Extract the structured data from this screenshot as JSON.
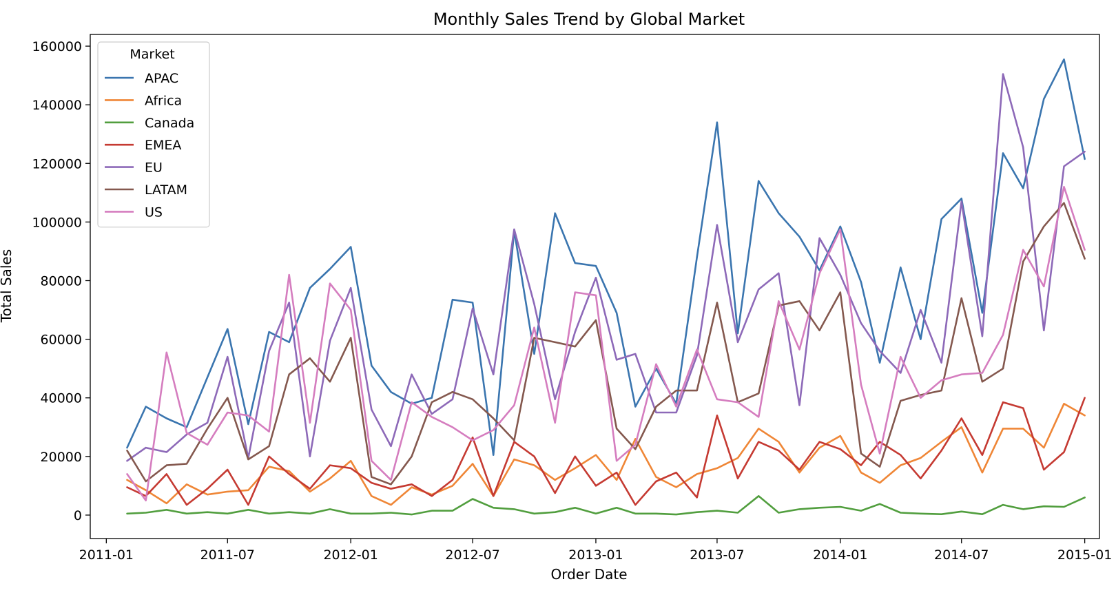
{
  "chart_data": {
    "type": "line",
    "title": "Monthly Sales Trend by Global Market",
    "xlabel": "Order Date",
    "ylabel": "Total Sales",
    "x": [
      "2011-01",
      "2011-02",
      "2011-03",
      "2011-04",
      "2011-05",
      "2011-06",
      "2011-07",
      "2011-08",
      "2011-09",
      "2011-10",
      "2011-11",
      "2011-12",
      "2012-01",
      "2012-02",
      "2012-03",
      "2012-04",
      "2012-05",
      "2012-06",
      "2012-07",
      "2012-08",
      "2012-09",
      "2012-10",
      "2012-11",
      "2012-12",
      "2013-01",
      "2013-02",
      "2013-03",
      "2013-04",
      "2013-05",
      "2013-06",
      "2013-07",
      "2013-08",
      "2013-09",
      "2013-10",
      "2013-11",
      "2013-12",
      "2014-01",
      "2014-02",
      "2014-03",
      "2014-04",
      "2014-05",
      "2014-06",
      "2014-07",
      "2014-08",
      "2014-09",
      "2014-10",
      "2014-11",
      "2014-12"
    ],
    "xticks": [
      "2011-01",
      "2011-07",
      "2012-01",
      "2012-07",
      "2013-01",
      "2013-07",
      "2014-01",
      "2014-07",
      "2015-01"
    ],
    "xlim": [
      "2010-12-08",
      "2015-01-23"
    ],
    "ylim": [
      -8000,
      164000
    ],
    "yticks": [
      0,
      20000,
      40000,
      60000,
      80000,
      100000,
      120000,
      140000,
      160000
    ],
    "grid": false,
    "legend": {
      "title": "Market",
      "placement": "top-left"
    },
    "series": [
      {
        "name": "APAC",
        "color": "#3a75af",
        "values": [
          23000,
          37000,
          33000,
          30000,
          47000,
          63500,
          31000,
          62500,
          59000,
          77500,
          84000,
          91500,
          51000,
          42000,
          38000,
          40000,
          73500,
          72500,
          20500,
          97000,
          55000,
          103000,
          86000,
          85000,
          69000,
          37000,
          50000,
          38000,
          88000,
          134000,
          62000,
          114000,
          103000,
          95000,
          83500,
          98500,
          79500,
          52000,
          84500,
          60000,
          101000,
          108000,
          69000,
          123500,
          111500,
          142000,
          155500,
          121500
        ]
      },
      {
        "name": "Africa",
        "color": "#ef8636",
        "values": [
          12000,
          8500,
          4000,
          10500,
          7000,
          8000,
          8500,
          16500,
          15000,
          8000,
          12500,
          18500,
          6500,
          3500,
          9500,
          7000,
          10000,
          17500,
          6500,
          19000,
          17000,
          12000,
          16000,
          20500,
          12000,
          26000,
          13000,
          9500,
          14000,
          16000,
          19500,
          29500,
          25000,
          14500,
          23000,
          27000,
          14500,
          11000,
          17000,
          19500,
          25000,
          30000,
          14500,
          29500,
          29500,
          23000,
          38000,
          34000
        ]
      },
      {
        "name": "Canada",
        "color": "#519e3e",
        "values": [
          500,
          800,
          1800,
          500,
          1000,
          500,
          1800,
          500,
          1000,
          500,
          2000,
          500,
          500,
          800,
          200,
          1500,
          1500,
          5500,
          2500,
          2000,
          500,
          1000,
          2500,
          500,
          2500,
          500,
          500,
          200,
          1000,
          1500,
          800,
          6500,
          800,
          2000,
          2500,
          2800,
          1500,
          3800,
          800,
          500,
          300,
          1200,
          300,
          3500,
          2000,
          3000,
          2800,
          6000
        ]
      },
      {
        "name": "EMEA",
        "color": "#c53a32",
        "values": [
          9500,
          6500,
          14000,
          3500,
          9000,
          15500,
          3500,
          20000,
          14000,
          9000,
          17000,
          16000,
          11000,
          9000,
          10500,
          6500,
          12000,
          26500,
          6500,
          25000,
          20000,
          7500,
          20000,
          10000,
          14500,
          3500,
          11500,
          14500,
          6000,
          34000,
          12500,
          25000,
          22000,
          15500,
          25000,
          22500,
          17000,
          25000,
          20500,
          12500,
          22000,
          33000,
          20500,
          38500,
          36500,
          15500,
          21500,
          40000
        ]
      },
      {
        "name": "EU",
        "color": "#8d69b8",
        "values": [
          18500,
          23000,
          21500,
          27500,
          31500,
          54000,
          19500,
          56000,
          72500,
          20000,
          59500,
          77500,
          36000,
          23500,
          48000,
          34500,
          39500,
          70500,
          48000,
          97500,
          72000,
          39500,
          62500,
          81000,
          53000,
          55000,
          35000,
          35000,
          54500,
          99000,
          59000,
          77000,
          82500,
          37500,
          94500,
          82000,
          65500,
          56000,
          48500,
          70000,
          52000,
          107000,
          61000,
          150500,
          125500,
          63000,
          119000,
          124000
        ]
      },
      {
        "name": "LATAM",
        "color": "#84584e",
        "values": [
          22000,
          11500,
          17000,
          17500,
          29500,
          40000,
          19000,
          23500,
          48000,
          53500,
          45500,
          60500,
          13000,
          10500,
          20000,
          38500,
          42000,
          39500,
          33000,
          25500,
          60500,
          59000,
          57500,
          66500,
          29500,
          22500,
          37000,
          42500,
          42500,
          72500,
          38500,
          41500,
          71500,
          73000,
          63000,
          76000,
          21000,
          16500,
          39000,
          41000,
          42500,
          74000,
          45500,
          50000,
          86500,
          98500,
          106500,
          87500
        ]
      },
      {
        "name": "US",
        "color": "#d57dbf",
        "values": [
          14000,
          5000,
          55500,
          28000,
          24000,
          35000,
          34000,
          28500,
          82000,
          31500,
          79000,
          70000,
          18500,
          12000,
          38500,
          33500,
          30000,
          25500,
          29000,
          37500,
          64000,
          31500,
          76000,
          75000,
          18500,
          24000,
          51500,
          37000,
          56500,
          39500,
          38500,
          33500,
          73000,
          56500,
          82500,
          97500,
          44500,
          21000,
          54000,
          40000,
          46000,
          48000,
          48500,
          61500,
          90500,
          78000,
          112000,
          90500
        ]
      }
    ]
  }
}
